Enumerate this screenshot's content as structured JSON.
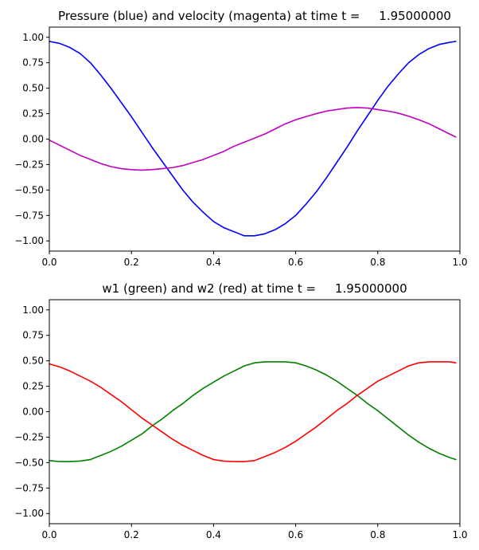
{
  "chart_data": [
    {
      "type": "line",
      "title": "Pressure (blue) and velocity (magenta) at time t =     1.95000000",
      "xlabel": "",
      "ylabel": "",
      "xlim": [
        0,
        1
      ],
      "ylim": [
        -1.1,
        1.1
      ],
      "grid": false,
      "x_ticks": [
        0.0,
        0.2,
        0.4,
        0.6,
        0.8,
        1.0
      ],
      "x_tick_labels": [
        "0.0",
        "0.2",
        "0.4",
        "0.6",
        "0.8",
        "1.0"
      ],
      "y_ticks": [
        1.0,
        0.75,
        0.5,
        0.25,
        0.0,
        -0.25,
        -0.5,
        -0.75,
        -1.0
      ],
      "y_tick_labels": [
        "1.00",
        "0.75",
        "0.50",
        "0.25",
        "0.00",
        "−0.25",
        "−0.50",
        "−0.75",
        "−1.00"
      ],
      "series": [
        {
          "color": "#0000ff",
          "x": [
            0.0,
            0.025,
            0.05,
            0.075,
            0.1,
            0.125,
            0.15,
            0.175,
            0.2,
            0.225,
            0.25,
            0.275,
            0.3,
            0.325,
            0.35,
            0.375,
            0.4,
            0.425,
            0.45,
            0.475,
            0.5,
            0.525,
            0.55,
            0.575,
            0.6,
            0.625,
            0.65,
            0.675,
            0.7,
            0.725,
            0.75,
            0.775,
            0.8,
            0.825,
            0.85,
            0.875,
            0.9,
            0.925,
            0.95,
            0.975,
            0.99
          ],
          "y": [
            0.96,
            0.94,
            0.9,
            0.84,
            0.75,
            0.63,
            0.5,
            0.36,
            0.22,
            0.07,
            -0.08,
            -0.22,
            -0.36,
            -0.5,
            -0.62,
            -0.72,
            -0.81,
            -0.87,
            -0.91,
            -0.95,
            -0.95,
            -0.93,
            -0.89,
            -0.83,
            -0.75,
            -0.64,
            -0.52,
            -0.38,
            -0.23,
            -0.08,
            0.08,
            0.23,
            0.38,
            0.52,
            0.64,
            0.75,
            0.83,
            0.89,
            0.93,
            0.95,
            0.96
          ]
        },
        {
          "color": "#bf00bf",
          "x": [
            0.0,
            0.025,
            0.05,
            0.075,
            0.1,
            0.125,
            0.15,
            0.175,
            0.2,
            0.225,
            0.25,
            0.275,
            0.3,
            0.325,
            0.35,
            0.375,
            0.4,
            0.425,
            0.45,
            0.475,
            0.5,
            0.525,
            0.55,
            0.575,
            0.6,
            0.625,
            0.65,
            0.675,
            0.7,
            0.725,
            0.75,
            0.775,
            0.8,
            0.825,
            0.85,
            0.875,
            0.9,
            0.925,
            0.95,
            0.975,
            0.99
          ],
          "y": [
            -0.01,
            -0.06,
            -0.11,
            -0.16,
            -0.2,
            -0.24,
            -0.27,
            -0.29,
            -0.3,
            -0.305,
            -0.3,
            -0.29,
            -0.28,
            -0.26,
            -0.23,
            -0.2,
            -0.16,
            -0.12,
            -0.07,
            -0.03,
            0.01,
            0.05,
            0.1,
            0.15,
            0.19,
            0.22,
            0.25,
            0.275,
            0.29,
            0.305,
            0.31,
            0.305,
            0.29,
            0.275,
            0.255,
            0.225,
            0.19,
            0.15,
            0.1,
            0.05,
            0.02
          ]
        }
      ]
    },
    {
      "type": "line",
      "title": "w1 (green) and w2 (red) at time t =     1.95000000",
      "xlabel": "",
      "ylabel": "",
      "xlim": [
        0,
        1
      ],
      "ylim": [
        -1.1,
        1.1
      ],
      "grid": false,
      "x_ticks": [
        0.0,
        0.2,
        0.4,
        0.6,
        0.8,
        1.0
      ],
      "x_tick_labels": [
        "0.0",
        "0.2",
        "0.4",
        "0.6",
        "0.8",
        "1.0"
      ],
      "y_ticks": [
        1.0,
        0.75,
        0.5,
        0.25,
        0.0,
        -0.25,
        -0.5,
        -0.75,
        -1.0
      ],
      "y_tick_labels": [
        "1.00",
        "0.75",
        "0.50",
        "0.25",
        "0.00",
        "−0.25",
        "−0.50",
        "−0.75",
        "−1.00"
      ],
      "series": [
        {
          "color": "#008000",
          "x": [
            0.0,
            0.025,
            0.05,
            0.075,
            0.1,
            0.125,
            0.15,
            0.175,
            0.2,
            0.225,
            0.25,
            0.275,
            0.3,
            0.325,
            0.35,
            0.375,
            0.4,
            0.425,
            0.45,
            0.475,
            0.5,
            0.525,
            0.55,
            0.575,
            0.6,
            0.625,
            0.65,
            0.675,
            0.7,
            0.725,
            0.75,
            0.775,
            0.8,
            0.825,
            0.85,
            0.875,
            0.9,
            0.925,
            0.95,
            0.975,
            0.99
          ],
          "y": [
            -0.48,
            -0.49,
            -0.49,
            -0.485,
            -0.47,
            -0.43,
            -0.39,
            -0.34,
            -0.28,
            -0.22,
            -0.14,
            -0.07,
            0.01,
            0.08,
            0.16,
            0.23,
            0.29,
            0.35,
            0.4,
            0.45,
            0.48,
            0.49,
            0.49,
            0.49,
            0.48,
            0.45,
            0.41,
            0.36,
            0.3,
            0.23,
            0.16,
            0.08,
            0.01,
            -0.07,
            -0.15,
            -0.23,
            -0.3,
            -0.36,
            -0.41,
            -0.45,
            -0.47
          ]
        },
        {
          "color": "#ff0000",
          "x": [
            0.0,
            0.025,
            0.05,
            0.075,
            0.1,
            0.125,
            0.15,
            0.175,
            0.2,
            0.225,
            0.25,
            0.275,
            0.3,
            0.325,
            0.35,
            0.375,
            0.4,
            0.425,
            0.45,
            0.475,
            0.5,
            0.525,
            0.55,
            0.575,
            0.6,
            0.625,
            0.65,
            0.675,
            0.7,
            0.725,
            0.75,
            0.775,
            0.8,
            0.825,
            0.85,
            0.875,
            0.9,
            0.925,
            0.95,
            0.975,
            0.99
          ],
          "y": [
            0.47,
            0.44,
            0.4,
            0.35,
            0.3,
            0.24,
            0.17,
            0.1,
            0.02,
            -0.06,
            -0.13,
            -0.2,
            -0.27,
            -0.33,
            -0.38,
            -0.43,
            -0.47,
            -0.485,
            -0.49,
            -0.49,
            -0.48,
            -0.44,
            -0.4,
            -0.35,
            -0.29,
            -0.22,
            -0.15,
            -0.07,
            0.01,
            0.08,
            0.16,
            0.23,
            0.3,
            0.35,
            0.4,
            0.45,
            0.48,
            0.49,
            0.49,
            0.49,
            0.48
          ]
        }
      ]
    }
  ]
}
